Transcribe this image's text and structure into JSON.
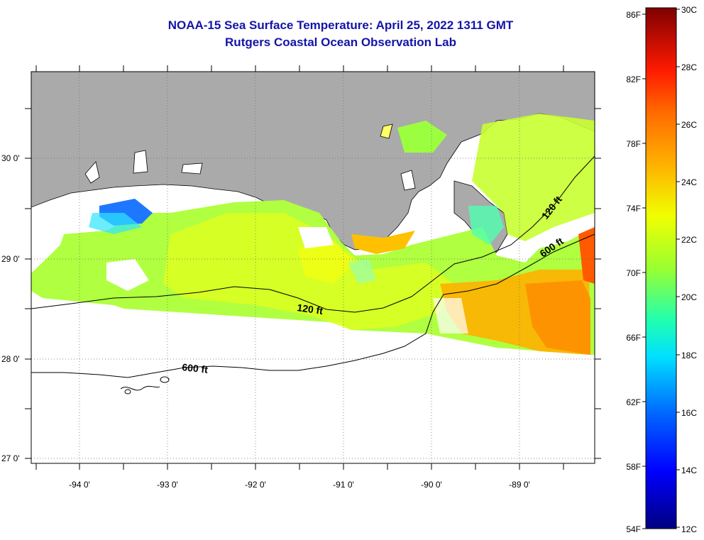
{
  "title": {
    "line1": "NOAA-15 Sea Surface Temperature:  April 25, 2022 1311 GMT",
    "line2": "Rutgers Coastal Ocean Observation Lab"
  },
  "map": {
    "lat_labels": [
      "30 0'",
      "29 0'",
      "28 0'",
      "27 0'"
    ],
    "lon_labels": [
      "-94 0'",
      "-93 0'",
      "-92 0'",
      "-91 0'",
      "-90 0'",
      "-89 0'"
    ],
    "contours": {
      "shelf_120": "120 ft",
      "slope_600": "600 ft",
      "east_120": "120 ft",
      "east_600": "600 ft"
    },
    "colors": {
      "land": "#aaaaaa",
      "ocean_nodata": "#ffffff",
      "frame": "#000000"
    }
  },
  "colorbar": {
    "f_labels": [
      "86F",
      "82F",
      "78F",
      "74F",
      "70F",
      "66F",
      "62F",
      "58F",
      "54F"
    ],
    "c_labels": [
      "30C",
      "28C",
      "26C",
      "24C",
      "22C",
      "20C",
      "18C",
      "16C",
      "14C",
      "12C"
    ],
    "colors": [
      "#00007f",
      "#0000ff",
      "#00a0ff",
      "#00ffff",
      "#2eff7a",
      "#9bff22",
      "#ffff00",
      "#ffb000",
      "#ff4a00",
      "#e00000",
      "#7f0000"
    ]
  }
}
